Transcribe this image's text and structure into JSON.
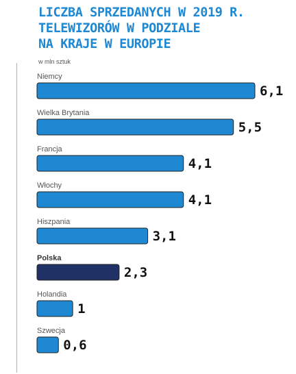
{
  "title_lines": [
    "LICZBA SPRZEDANYCH W 2019 R.",
    "TELEWIZORÓW W PODZIALE",
    "NA KRAJE W EUROPIE"
  ],
  "unit": "w mln sztuk",
  "colors": {
    "title": "#1e88d2",
    "bar": "#1e88d2",
    "highlight": "#1f3166"
  },
  "chart_data": {
    "type": "bar",
    "orientation": "horizontal",
    "title": "LICZBA SPRZEDANYCH W 2019 R. TELEWIZORÓW W PODZIALE NA KRAJE W EUROPIE",
    "unit": "w mln sztuk",
    "categories": [
      "Niemcy",
      "Wielka Brytania",
      "Francja",
      "Włochy",
      "Hiszpania",
      "Polska",
      "Holandia",
      "Szwecja"
    ],
    "values": [
      6.1,
      5.5,
      4.1,
      4.1,
      3.1,
      2.3,
      1,
      0.6
    ],
    "value_labels": [
      "6,1",
      "5,5",
      "4,1",
      "4,1",
      "3,1",
      "2,3",
      "1",
      "0,6"
    ],
    "highlighted": "Polska",
    "xlim": [
      0,
      6.1
    ],
    "grid": false,
    "legend": "none"
  }
}
